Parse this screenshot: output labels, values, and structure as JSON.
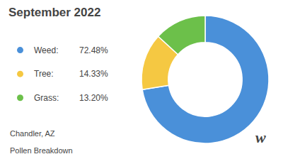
{
  "chart_data": {
    "type": "pie",
    "title": "September 2022",
    "subtitle": [
      "Chandler, AZ",
      "Pollen Breakdown"
    ],
    "annotations": [
      "w"
    ],
    "categories": [
      "Weed:",
      "Tree:",
      "Grass:"
    ],
    "values": [
      72.48,
      14.33,
      13.2
    ],
    "value_labels": [
      "72.48%",
      "14.33%",
      "13.20%"
    ],
    "colors": [
      "#4A90D9",
      "#F5C842",
      "#6CC04A"
    ],
    "legend": "left"
  }
}
